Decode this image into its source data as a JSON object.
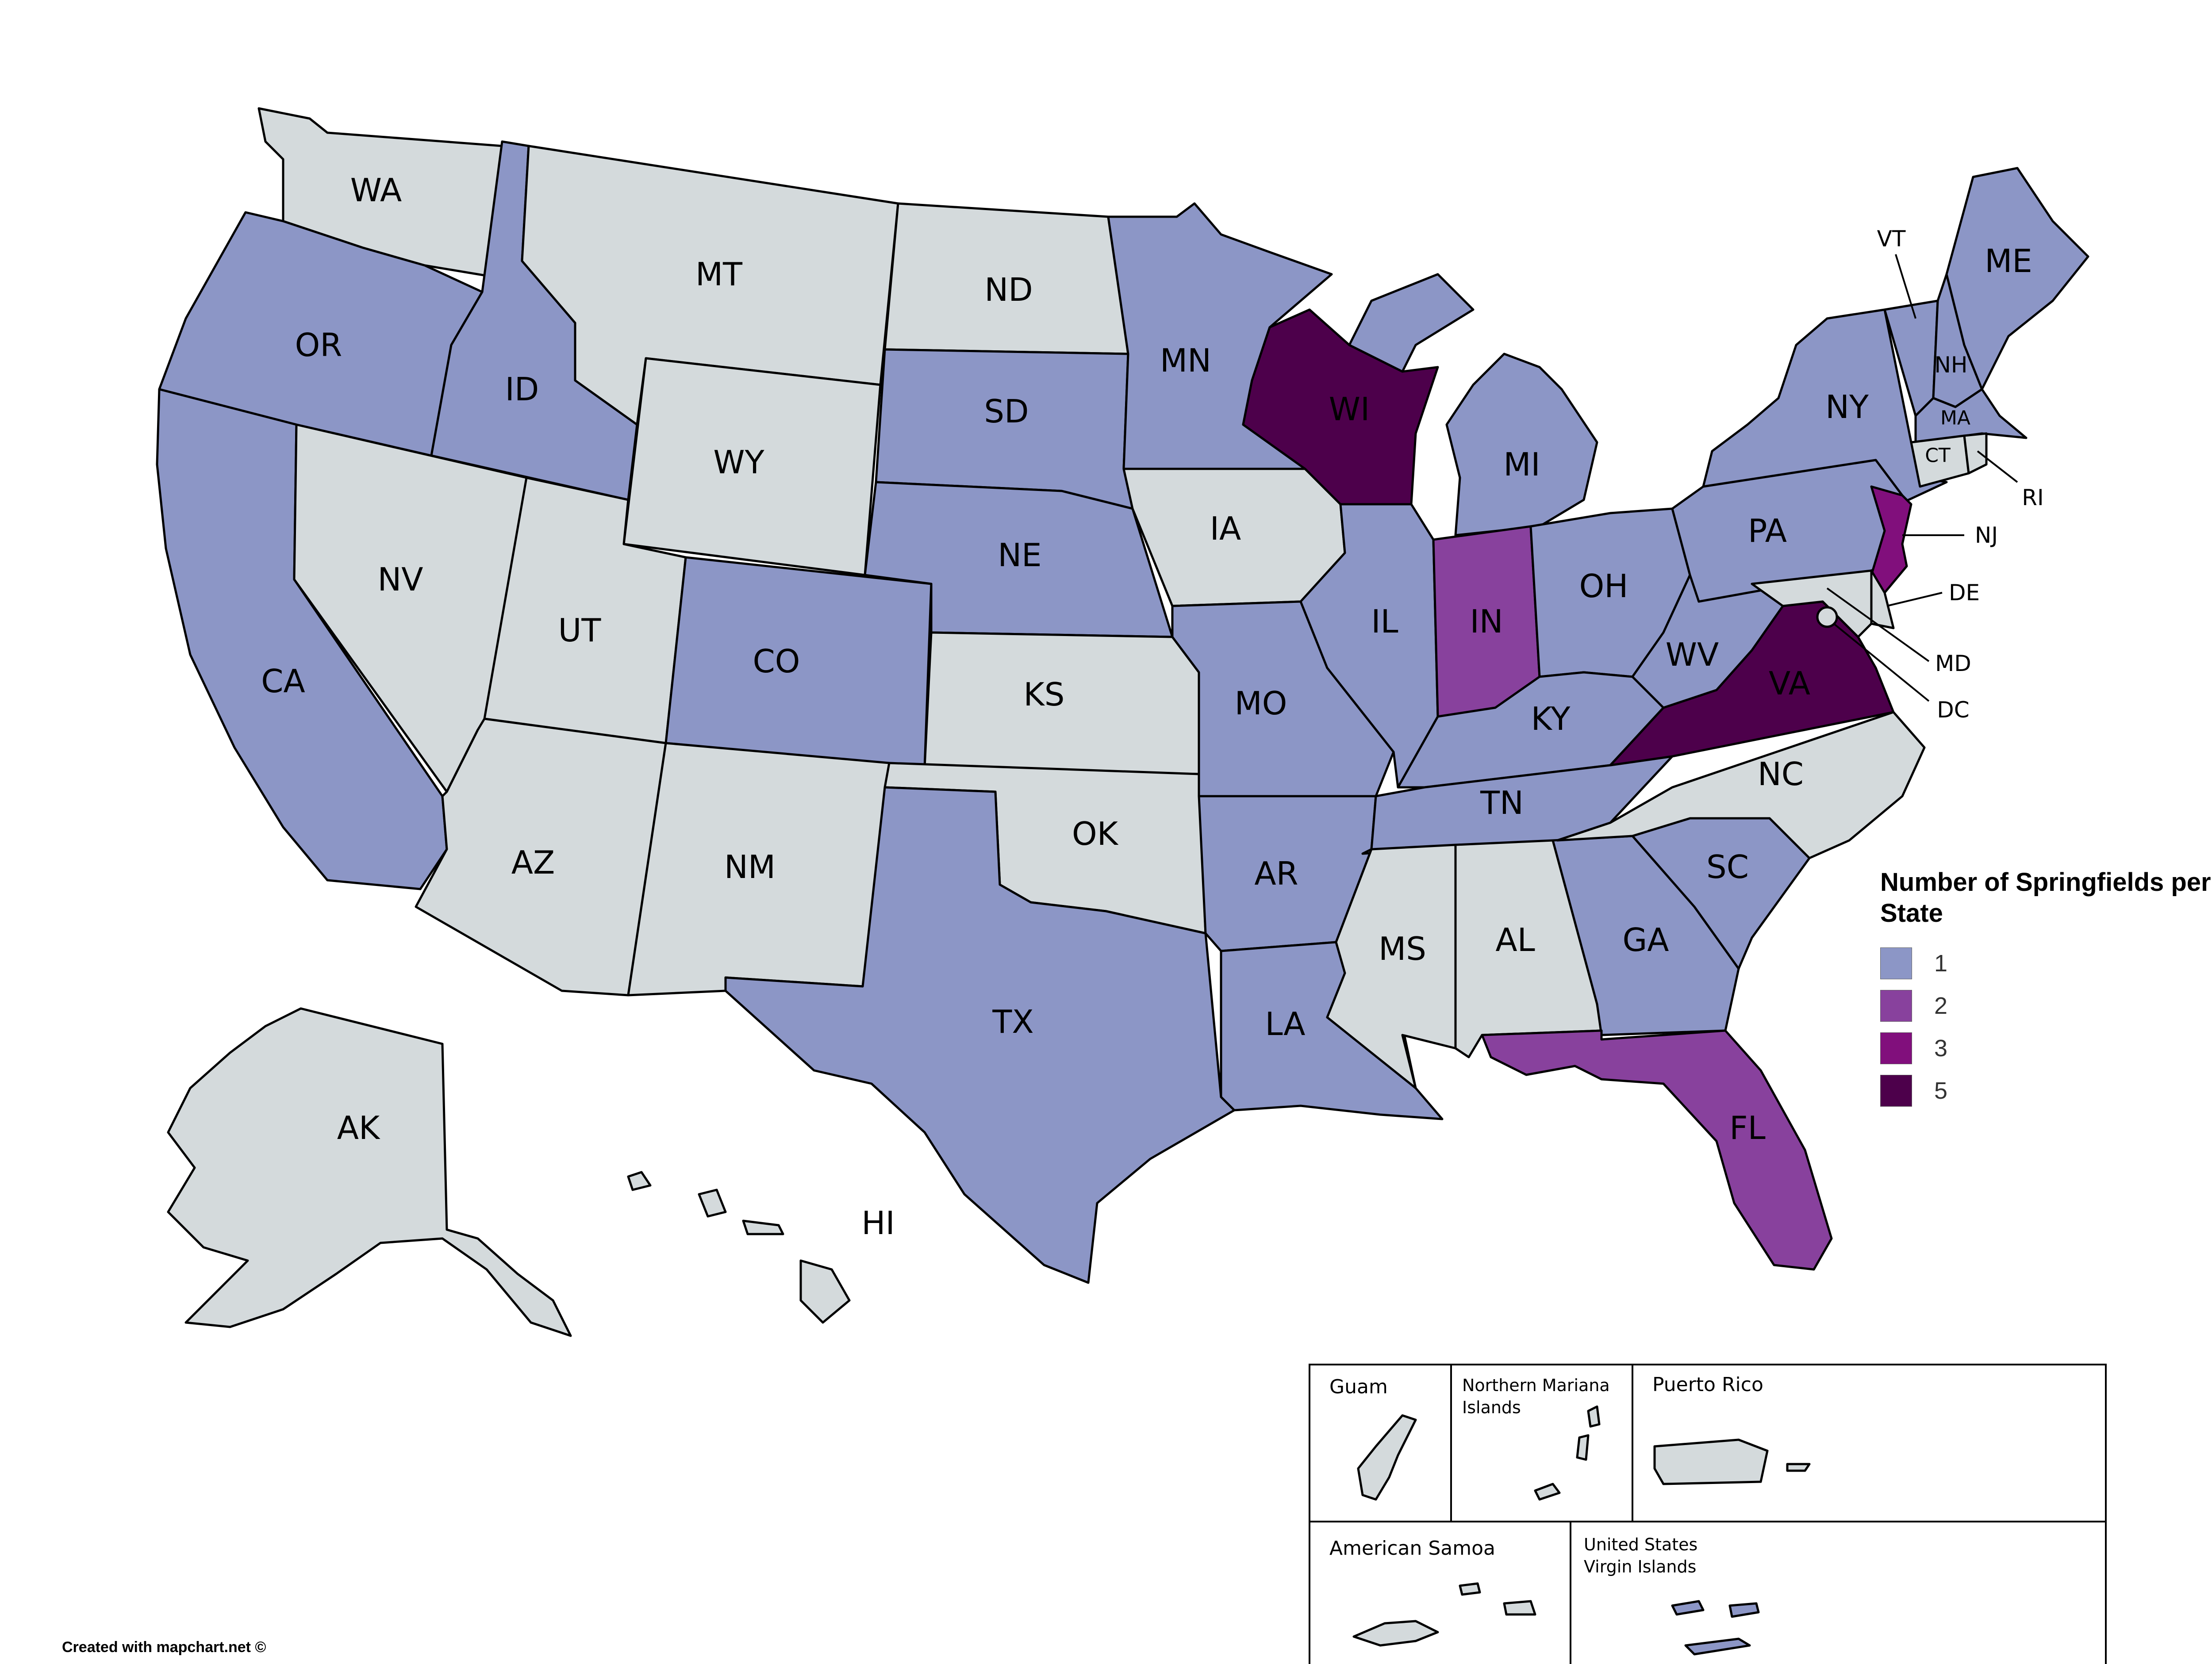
{
  "legend": {
    "title": "Number of Springfields per State",
    "items": [
      {
        "label": "1",
        "color": "#8c96c6"
      },
      {
        "label": "2",
        "color": "#88419d"
      },
      {
        "label": "3",
        "color": "#810f7c"
      },
      {
        "label": "5",
        "color": "#4d004b"
      }
    ],
    "zero_color": "#d4dadc"
  },
  "credit": "Created with mapchart.net ©",
  "states": {
    "WA": {
      "label": "WA",
      "value": 0
    },
    "OR": {
      "label": "OR",
      "value": 1
    },
    "CA": {
      "label": "CA",
      "value": 1
    },
    "ID": {
      "label": "ID",
      "value": 1
    },
    "NV": {
      "label": "NV",
      "value": 0
    },
    "MT": {
      "label": "MT",
      "value": 0
    },
    "WY": {
      "label": "WY",
      "value": 0
    },
    "UT": {
      "label": "UT",
      "value": 0
    },
    "AZ": {
      "label": "AZ",
      "value": 0
    },
    "CO": {
      "label": "CO",
      "value": 1
    },
    "NM": {
      "label": "NM",
      "value": 0
    },
    "ND": {
      "label": "ND",
      "value": 0
    },
    "SD": {
      "label": "SD",
      "value": 1
    },
    "NE": {
      "label": "NE",
      "value": 1
    },
    "KS": {
      "label": "KS",
      "value": 0
    },
    "OK": {
      "label": "OK",
      "value": 0
    },
    "TX": {
      "label": "TX",
      "value": 1
    },
    "MN": {
      "label": "MN",
      "value": 1
    },
    "IA": {
      "label": "IA",
      "value": 0
    },
    "MO": {
      "label": "MO",
      "value": 1
    },
    "AR": {
      "label": "AR",
      "value": 1
    },
    "LA": {
      "label": "LA",
      "value": 1
    },
    "WI": {
      "label": "WI",
      "value": 5
    },
    "IL": {
      "label": "IL",
      "value": 1
    },
    "MI": {
      "label": "MI",
      "value": 1
    },
    "IN": {
      "label": "IN",
      "value": 2
    },
    "OH": {
      "label": "OH",
      "value": 1
    },
    "KY": {
      "label": "KY",
      "value": 1
    },
    "TN": {
      "label": "TN",
      "value": 1
    },
    "MS": {
      "label": "MS",
      "value": 0
    },
    "AL": {
      "label": "AL",
      "value": 0
    },
    "GA": {
      "label": "GA",
      "value": 1
    },
    "FL": {
      "label": "FL",
      "value": 2
    },
    "SC": {
      "label": "SC",
      "value": 1
    },
    "NC": {
      "label": "NC",
      "value": 0
    },
    "VA": {
      "label": "VA",
      "value": 5
    },
    "WV": {
      "label": "WV",
      "value": 1
    },
    "PA": {
      "label": "PA",
      "value": 1
    },
    "NY": {
      "label": "NY",
      "value": 1
    },
    "VT": {
      "label": "VT",
      "value": 1
    },
    "NH": {
      "label": "NH",
      "value": 1
    },
    "ME": {
      "label": "ME",
      "value": 1
    },
    "MA": {
      "label": "MA",
      "value": 1
    },
    "CT": {
      "label": "CT",
      "value": 0
    },
    "RI": {
      "label": "RI",
      "value": 0
    },
    "NJ": {
      "label": "NJ",
      "value": 3
    },
    "DE": {
      "label": "DE",
      "value": 0
    },
    "MD": {
      "label": "MD",
      "value": 0
    },
    "DC": {
      "label": "DC",
      "value": 0
    },
    "AK": {
      "label": "AK",
      "value": 0
    },
    "HI": {
      "label": "HI",
      "value": 0
    }
  },
  "territories": {
    "GU": {
      "label": "Guam",
      "value": 0
    },
    "MP": {
      "label": "Northern Mariana Islands",
      "line1": "Northern Mariana",
      "line2": "Islands",
      "value": 0
    },
    "PR": {
      "label": "Puerto Rico",
      "value": 0
    },
    "AS": {
      "label": "American Samoa",
      "value": 0
    },
    "VI": {
      "label": "United States Virgin Islands",
      "line1": "United States",
      "line2": "Virgin Islands",
      "value": 1
    }
  }
}
